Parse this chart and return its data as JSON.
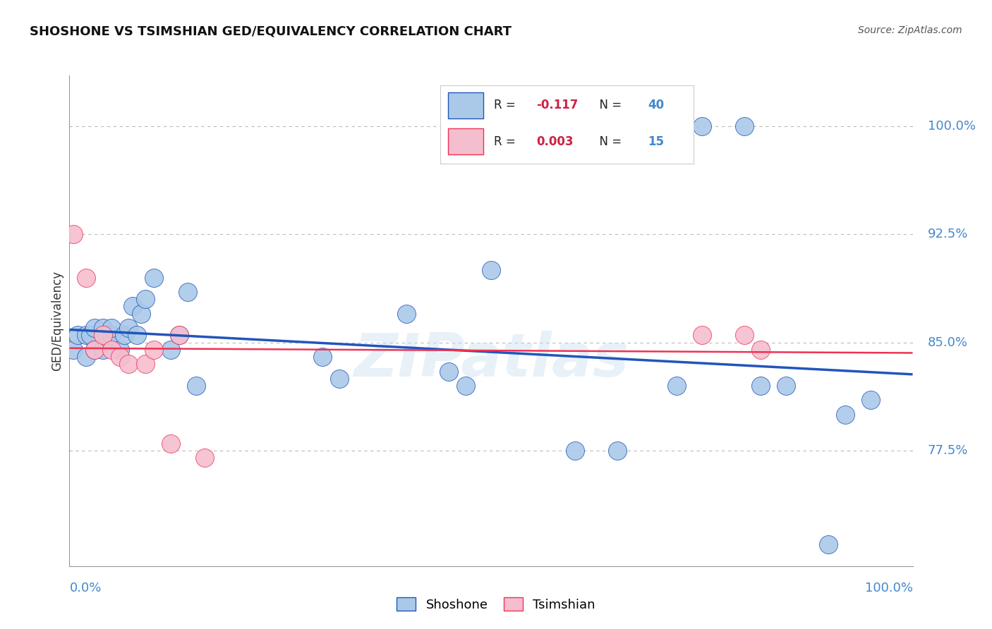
{
  "title": "SHOSHONE VS TSIMSHIAN GED/EQUIVALENCY CORRELATION CHART",
  "source": "Source: ZipAtlas.com",
  "ylabel": "GED/Equivalency",
  "watermark": "ZIPatlas",
  "legend_shoshone": "Shoshone",
  "legend_tsimshian": "Tsimshian",
  "R_shoshone": "-0.117",
  "N_shoshone": "40",
  "R_tsimshian": "0.003",
  "N_tsimshian": "15",
  "shoshone_color": "#aac9e8",
  "tsimshian_color": "#f5bece",
  "trend_shoshone_color": "#2255bb",
  "trend_tsimshian_color": "#ee3355",
  "ytick_labels": [
    "77.5%",
    "85.0%",
    "92.5%",
    "100.0%"
  ],
  "ytick_values": [
    0.775,
    0.85,
    0.925,
    1.0
  ],
  "xlim": [
    0.0,
    1.0
  ],
  "ylim": [
    0.695,
    1.035
  ],
  "shoshone_x": [
    0.005,
    0.01,
    0.02,
    0.02,
    0.025,
    0.03,
    0.03,
    0.04,
    0.04,
    0.045,
    0.05,
    0.05,
    0.06,
    0.065,
    0.07,
    0.075,
    0.08,
    0.085,
    0.09,
    0.1,
    0.12,
    0.13,
    0.14,
    0.15,
    0.3,
    0.32,
    0.4,
    0.45,
    0.47,
    0.5,
    0.6,
    0.65,
    0.72,
    0.75,
    0.8,
    0.82,
    0.85,
    0.9,
    0.92,
    0.95
  ],
  "shoshone_y": [
    0.845,
    0.855,
    0.84,
    0.855,
    0.855,
    0.845,
    0.86,
    0.845,
    0.86,
    0.855,
    0.855,
    0.86,
    0.845,
    0.855,
    0.86,
    0.875,
    0.855,
    0.87,
    0.88,
    0.895,
    0.845,
    0.855,
    0.885,
    0.82,
    0.84,
    0.825,
    0.87,
    0.83,
    0.82,
    0.9,
    0.775,
    0.775,
    0.82,
    1.0,
    1.0,
    0.82,
    0.82,
    0.71,
    0.8,
    0.81
  ],
  "tsimshian_x": [
    0.005,
    0.02,
    0.03,
    0.04,
    0.05,
    0.06,
    0.07,
    0.09,
    0.1,
    0.12,
    0.13,
    0.16,
    0.75,
    0.8,
    0.82
  ],
  "tsimshian_y": [
    0.925,
    0.895,
    0.845,
    0.855,
    0.845,
    0.84,
    0.835,
    0.835,
    0.845,
    0.78,
    0.855,
    0.77,
    0.855,
    0.855,
    0.845
  ]
}
